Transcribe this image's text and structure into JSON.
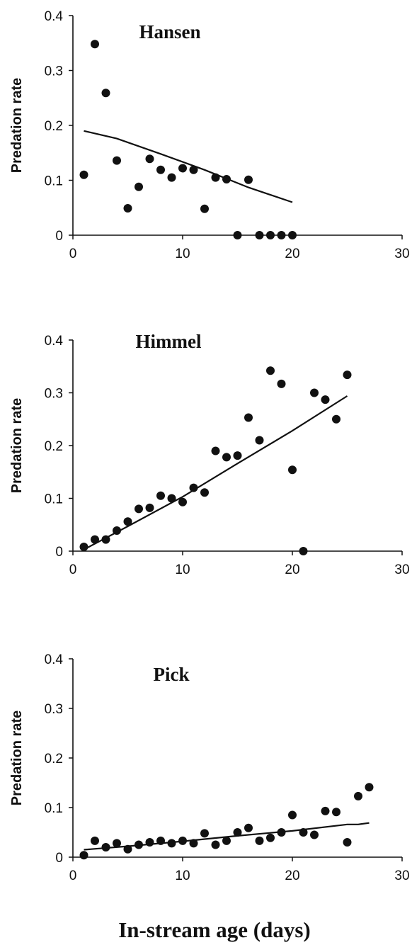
{
  "chart_data": {
    "type": "scatter",
    "xlabel": "In-stream age (days)",
    "panels": [
      {
        "title": "Hansen",
        "ylabel": "Predation rate",
        "xlim": [
          0,
          30
        ],
        "ylim": [
          0,
          0.4
        ],
        "xticks": [
          "0",
          "10",
          "20",
          "30"
        ],
        "yticks": [
          "0",
          "0.1",
          "0.2",
          "0.3",
          "0.4"
        ],
        "points": [
          {
            "x": 1,
            "y": 0.11
          },
          {
            "x": 2,
            "y": 0.348
          },
          {
            "x": 3,
            "y": 0.259
          },
          {
            "x": 4,
            "y": 0.136
          },
          {
            "x": 5,
            "y": 0.049
          },
          {
            "x": 6,
            "y": 0.088
          },
          {
            "x": 7,
            "y": 0.139
          },
          {
            "x": 8,
            "y": 0.119
          },
          {
            "x": 9,
            "y": 0.105
          },
          {
            "x": 10,
            "y": 0.122
          },
          {
            "x": 11,
            "y": 0.119
          },
          {
            "x": 12,
            "y": 0.048
          },
          {
            "x": 13,
            "y": 0.105
          },
          {
            "x": 14,
            "y": 0.102
          },
          {
            "x": 15,
            "y": 0.0
          },
          {
            "x": 16,
            "y": 0.101
          },
          {
            "x": 17,
            "y": 0.0
          },
          {
            "x": 18,
            "y": 0.0
          },
          {
            "x": 19,
            "y": 0.0
          },
          {
            "x": 20,
            "y": 0.0
          }
        ],
        "trend": [
          {
            "x": 1,
            "y": 0.19
          },
          {
            "x": 4,
            "y": 0.176
          },
          {
            "x": 8,
            "y": 0.148
          },
          {
            "x": 12,
            "y": 0.119
          },
          {
            "x": 16,
            "y": 0.087
          },
          {
            "x": 20,
            "y": 0.06
          }
        ]
      },
      {
        "title": "Himmel",
        "ylabel": "Predation rate",
        "xlim": [
          0,
          30
        ],
        "ylim": [
          0,
          0.4
        ],
        "xticks": [
          "0",
          "10",
          "20",
          "30"
        ],
        "yticks": [
          "0",
          "0.1",
          "0.2",
          "0.3",
          "0.4"
        ],
        "points": [
          {
            "x": 1,
            "y": 0.008
          },
          {
            "x": 2,
            "y": 0.022
          },
          {
            "x": 3,
            "y": 0.022
          },
          {
            "x": 4,
            "y": 0.039
          },
          {
            "x": 5,
            "y": 0.056
          },
          {
            "x": 6,
            "y": 0.08
          },
          {
            "x": 7,
            "y": 0.082
          },
          {
            "x": 8,
            "y": 0.105
          },
          {
            "x": 9,
            "y": 0.1
          },
          {
            "x": 10,
            "y": 0.093
          },
          {
            "x": 11,
            "y": 0.12
          },
          {
            "x": 12,
            "y": 0.111
          },
          {
            "x": 13,
            "y": 0.19
          },
          {
            "x": 14,
            "y": 0.178
          },
          {
            "x": 15,
            "y": 0.181
          },
          {
            "x": 16,
            "y": 0.253
          },
          {
            "x": 17,
            "y": 0.21
          },
          {
            "x": 18,
            "y": 0.342
          },
          {
            "x": 19,
            "y": 0.317
          },
          {
            "x": 20,
            "y": 0.154
          },
          {
            "x": 21,
            "y": 0.0
          },
          {
            "x": 22,
            "y": 0.3
          },
          {
            "x": 23,
            "y": 0.287
          },
          {
            "x": 24,
            "y": 0.25
          },
          {
            "x": 25,
            "y": 0.334
          }
        ],
        "trend": [
          {
            "x": 1,
            "y": 0.003
          },
          {
            "x": 5,
            "y": 0.047
          },
          {
            "x": 10,
            "y": 0.103
          },
          {
            "x": 15,
            "y": 0.166
          },
          {
            "x": 20,
            "y": 0.228
          },
          {
            "x": 25,
            "y": 0.294
          }
        ]
      },
      {
        "title": "Pick",
        "ylabel": "Predation rate",
        "xlim": [
          0,
          30
        ],
        "ylim": [
          0,
          0.4
        ],
        "xticks": [
          "0",
          "10",
          "20",
          "30"
        ],
        "yticks": [
          "0",
          "0.1",
          "0.2",
          "0.3",
          "0.4"
        ],
        "points": [
          {
            "x": 1,
            "y": 0.004
          },
          {
            "x": 2,
            "y": 0.033
          },
          {
            "x": 3,
            "y": 0.02
          },
          {
            "x": 4,
            "y": 0.028
          },
          {
            "x": 5,
            "y": 0.016
          },
          {
            "x": 6,
            "y": 0.025
          },
          {
            "x": 7,
            "y": 0.03
          },
          {
            "x": 8,
            "y": 0.033
          },
          {
            "x": 9,
            "y": 0.028
          },
          {
            "x": 10,
            "y": 0.033
          },
          {
            "x": 11,
            "y": 0.028
          },
          {
            "x": 12,
            "y": 0.048
          },
          {
            "x": 13,
            "y": 0.025
          },
          {
            "x": 14,
            "y": 0.033
          },
          {
            "x": 15,
            "y": 0.05
          },
          {
            "x": 16,
            "y": 0.059
          },
          {
            "x": 17,
            "y": 0.033
          },
          {
            "x": 18,
            "y": 0.039
          },
          {
            "x": 19,
            "y": 0.05
          },
          {
            "x": 20,
            "y": 0.085
          },
          {
            "x": 21,
            "y": 0.05
          },
          {
            "x": 22,
            "y": 0.045
          },
          {
            "x": 23,
            "y": 0.093
          },
          {
            "x": 24,
            "y": 0.091
          },
          {
            "x": 25,
            "y": 0.03
          },
          {
            "x": 26,
            "y": 0.123
          },
          {
            "x": 27,
            "y": 0.141
          }
        ],
        "trend": [
          {
            "x": 1,
            "y": 0.015
          },
          {
            "x": 5,
            "y": 0.022
          },
          {
            "x": 10,
            "y": 0.032
          },
          {
            "x": 15,
            "y": 0.043
          },
          {
            "x": 20,
            "y": 0.053
          },
          {
            "x": 25,
            "y": 0.066
          },
          {
            "x": 26,
            "y": 0.066
          },
          {
            "x": 27,
            "y": 0.069
          }
        ]
      }
    ]
  }
}
